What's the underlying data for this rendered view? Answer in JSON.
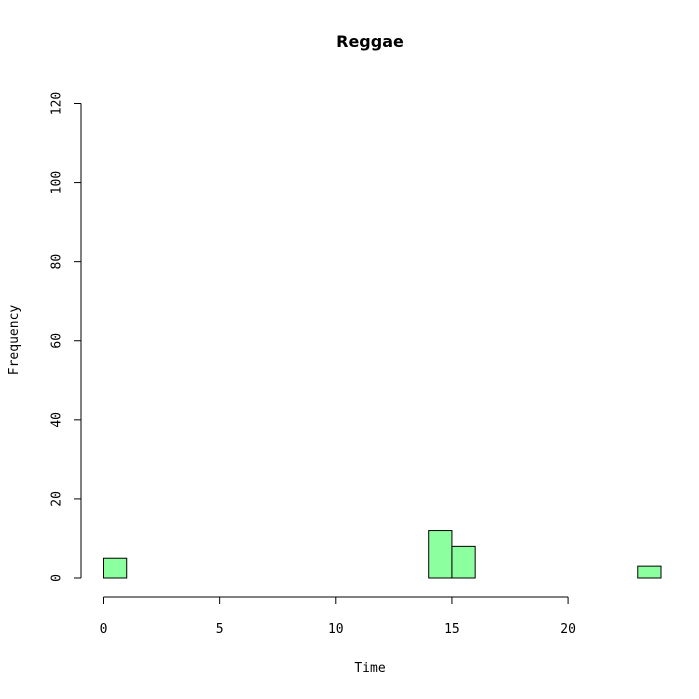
{
  "chart_data": {
    "type": "bar",
    "title": "Reggae",
    "xlabel": "Time",
    "ylabel": "Frequency",
    "xlim": [
      0,
      24
    ],
    "ylim": [
      0,
      120
    ],
    "x_ticks": [
      0,
      5,
      10,
      15,
      20
    ],
    "y_ticks": [
      0,
      20,
      40,
      60,
      80,
      100,
      120
    ],
    "bins": [
      {
        "start": 0,
        "end": 1,
        "count": 5
      },
      {
        "start": 1,
        "end": 2,
        "count": 0
      },
      {
        "start": 2,
        "end": 3,
        "count": 0
      },
      {
        "start": 3,
        "end": 4,
        "count": 0
      },
      {
        "start": 4,
        "end": 5,
        "count": 0
      },
      {
        "start": 5,
        "end": 6,
        "count": 0
      },
      {
        "start": 6,
        "end": 7,
        "count": 0
      },
      {
        "start": 7,
        "end": 8,
        "count": 0
      },
      {
        "start": 8,
        "end": 9,
        "count": 0
      },
      {
        "start": 9,
        "end": 10,
        "count": 0
      },
      {
        "start": 10,
        "end": 11,
        "count": 0
      },
      {
        "start": 11,
        "end": 12,
        "count": 0
      },
      {
        "start": 12,
        "end": 13,
        "count": 0
      },
      {
        "start": 13,
        "end": 14,
        "count": 0
      },
      {
        "start": 14,
        "end": 15,
        "count": 12
      },
      {
        "start": 15,
        "end": 16,
        "count": 8
      },
      {
        "start": 16,
        "end": 17,
        "count": 0
      },
      {
        "start": 17,
        "end": 18,
        "count": 0
      },
      {
        "start": 18,
        "end": 19,
        "count": 0
      },
      {
        "start": 19,
        "end": 20,
        "count": 0
      },
      {
        "start": 20,
        "end": 21,
        "count": 0
      },
      {
        "start": 21,
        "end": 22,
        "count": 0
      },
      {
        "start": 22,
        "end": 23,
        "count": 0
      },
      {
        "start": 23,
        "end": 24,
        "count": 3
      }
    ],
    "bar_color": "#8cff9f",
    "grid": false,
    "legend": "none"
  }
}
